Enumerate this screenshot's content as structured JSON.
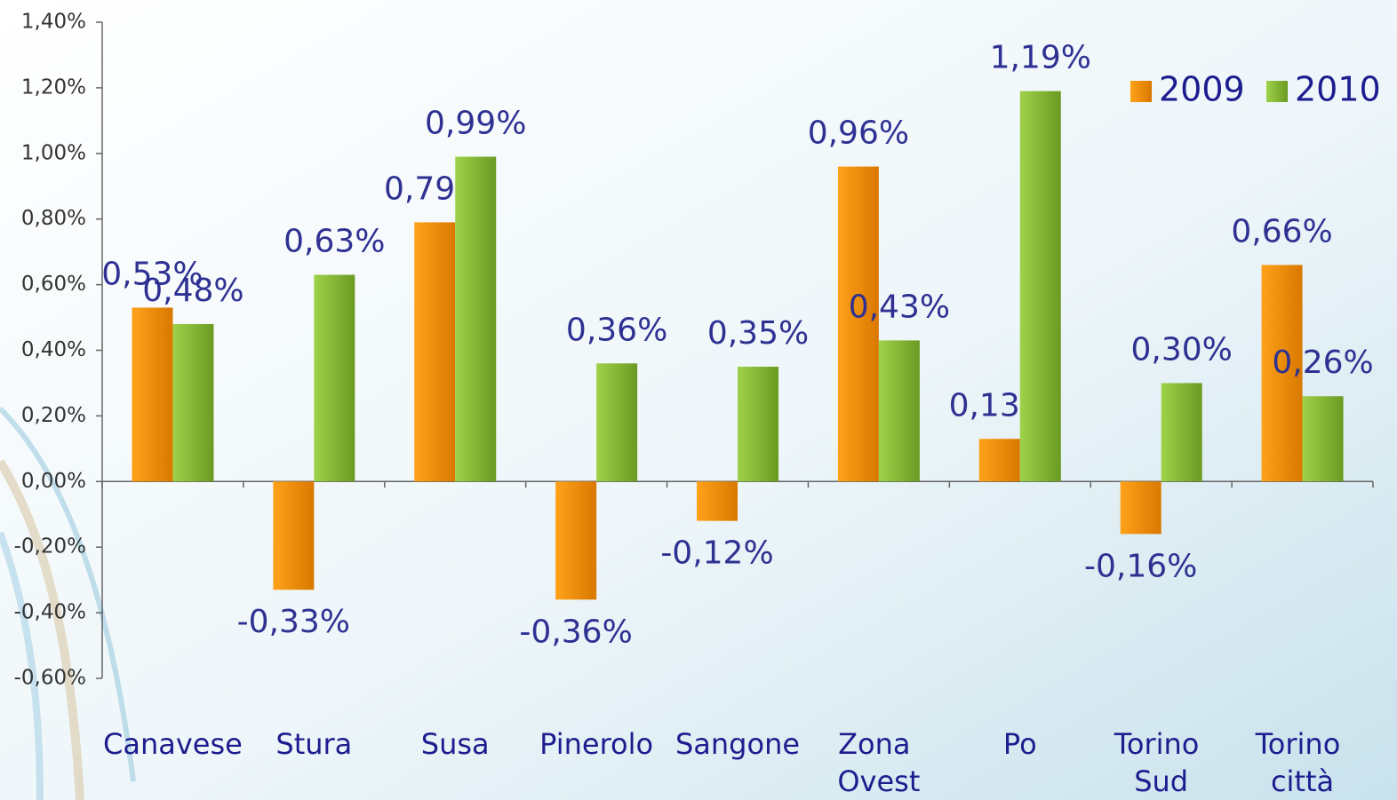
{
  "chart_data": {
    "type": "bar",
    "categories": [
      "Canavese",
      "Stura",
      "Susa",
      "Pinerolo",
      "Sangone",
      "Zona Ovest",
      "Po",
      "Torino Sud",
      "Torino città"
    ],
    "series": [
      {
        "name": "2009",
        "color": "#f39200",
        "values": [
          0.53,
          -0.33,
          0.79,
          -0.36,
          -0.12,
          0.96,
          0.13,
          -0.16,
          0.66
        ],
        "value_labels": [
          "0,53%",
          "-0,33%",
          "0,79%",
          "-0,36%",
          "-0,12%",
          "0,96%",
          "0,13%",
          "-0,16%",
          "0,66%"
        ]
      },
      {
        "name": "2010",
        "color": "#8cc63f",
        "values": [
          0.48,
          0.63,
          0.99,
          0.36,
          0.35,
          0.43,
          1.19,
          0.3,
          0.26
        ],
        "value_labels": [
          "0,48%",
          "0,63%",
          "0,99%",
          "0,36%",
          "0,35%",
          "0,43%",
          "1,19%",
          "0,30%",
          "0,26%"
        ]
      }
    ],
    "ylim": [
      -0.6,
      1.4
    ],
    "yticks": [
      {
        "value": -0.6,
        "label": "-0,60%"
      },
      {
        "value": -0.4,
        "label": "-0,40%"
      },
      {
        "value": -0.2,
        "label": "-0,20%"
      },
      {
        "value": 0,
        "label": "0,00%"
      },
      {
        "value": 0.2,
        "label": "0,20%"
      },
      {
        "value": 0.4,
        "label": "0,40%"
      },
      {
        "value": 0.6,
        "label": "0,60%"
      },
      {
        "value": 0.8,
        "label": "0,80%"
      },
      {
        "value": 1.0,
        "label": "1,00%"
      },
      {
        "value": 1.2,
        "label": "1,20%"
      },
      {
        "value": 1.4,
        "label": "1,40%"
      }
    ],
    "legend": "top-right"
  }
}
